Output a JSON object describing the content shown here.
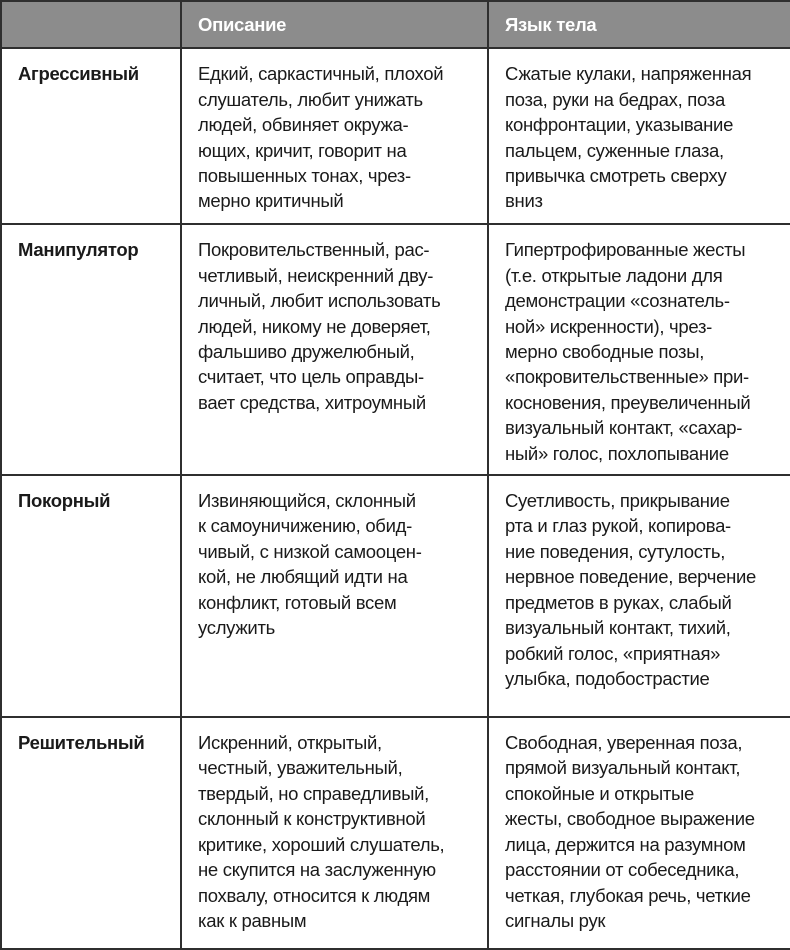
{
  "header": {
    "col1": "",
    "col2": "Описание",
    "col3": "Язык тела"
  },
  "rows": [
    {
      "name": "Агрессивный",
      "description": "Едкий, саркастичный, плохой\nслушатель, любит унижать\nлюдей, обвиняет окружа-\nющих, кричит, говорит на\nповышенных тонах, чрез-\nмерно критичный",
      "body_language": "Сжатые кулаки, напряженная\nпоза, руки на бедрах, поза\nконфронтации, указывание\nпальцем, суженные глаза,\nпривычка смотреть сверху\nвниз"
    },
    {
      "name": "Манипулятор",
      "description": "Покровительственный, рас-\nчетливый, неискренний дву-\nличный, любит использовать\nлюдей, никому не доверяет,\nфальшиво дружелюбный,\nсчитает, что цель оправды-\nвает средства, хитроумный",
      "body_language": "Гипертрофированные жесты\n(т.е. открытые ладони для\nдемонстрации «сознатель-\nной» искренности), чрез-\nмерно свободные позы,\n«покровительственные» при-\nкосновения, преувеличенный\nвизуальный контакт, «сахар-\nный» голос, похлопывание"
    },
    {
      "name": "Покорный",
      "description": "Извиняющийся, склонный\nк самоуничижению, обид-\nчивый, с низкой самооцен-\nкой, не любящий идти на\nконфликт, готовый всем\nуслужить",
      "body_language": "Суетливость, прикрывание\nрта и глаз рукой, копирова-\nние поведения, сутулость,\nнервное поведение, верчение\nпредметов в руках, слабый\nвизуальный контакт, тихий,\nробкий голос, «приятная»\nулыбка, подобострастие"
    },
    {
      "name": "Решительный",
      "description": "Искренний, открытый,\nчестный, уважительный,\nтвердый, но справедливый,\nсклонный к конструктивной\nкритике, хороший слушатель,\nне скупится на заслуженную\nпохвалу, относится к людям\nкак к равным",
      "body_language": "Свободная, уверенная поза,\nпрямой визуальный контакт,\nспокойные и открытые\nжесты, свободное выражение\nлица, держится на разумном\nрасстоянии от собеседника,\nчеткая, глубокая речь, четкие\nсигналы рук"
    }
  ]
}
